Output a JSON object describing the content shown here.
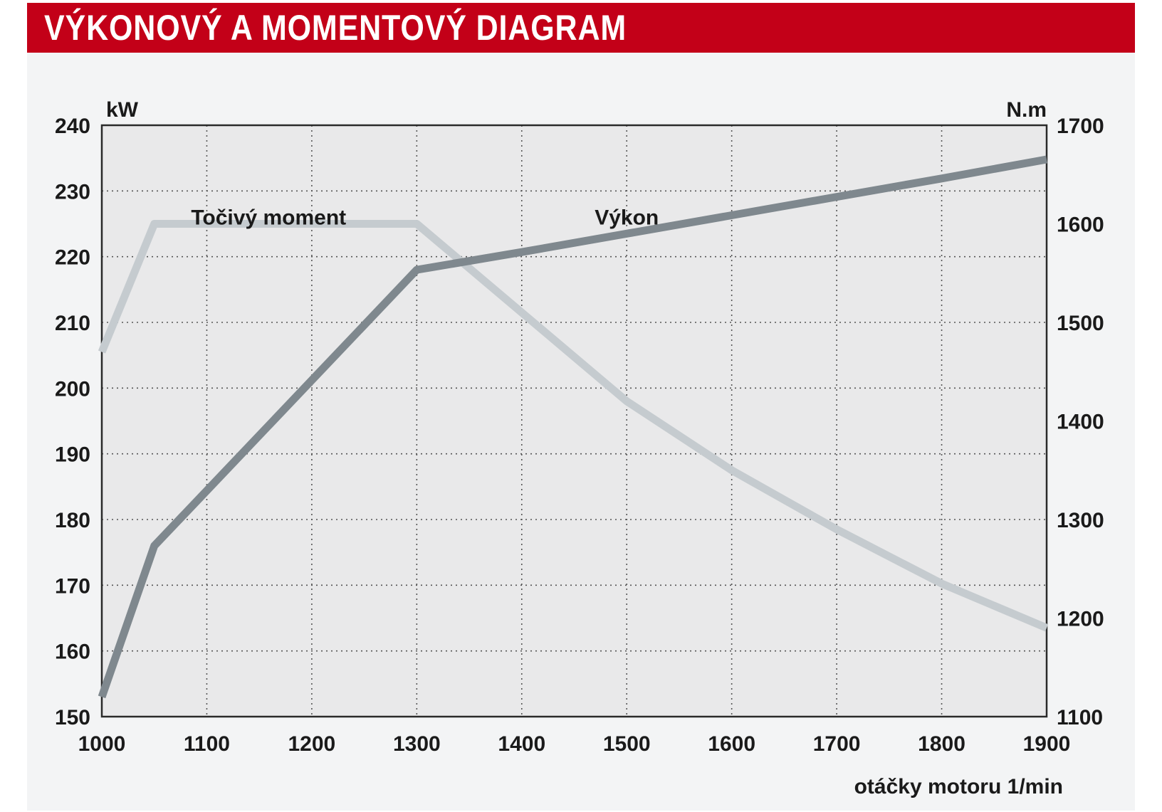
{
  "header": {
    "title": "VÝKONOVÝ A MOMENTOVÝ DIAGRAM"
  },
  "colors": {
    "header_red": "#c30018",
    "power_line": "#7f888e",
    "torque_line": "#c5cbcf",
    "plot_bg": "#e9e9ea"
  },
  "chart_data": {
    "type": "line",
    "title": "VÝKONOVÝ A MOMENTOVÝ DIAGRAM",
    "xlabel": "otáčky motoru 1/min",
    "ylabel_left": "kW",
    "ylabel_right": "N.m",
    "xlim": [
      1000,
      1900
    ],
    "ylim_left": [
      150,
      240
    ],
    "ylim_right": [
      1100,
      1700
    ],
    "x_ticks": [
      1000,
      1100,
      1200,
      1300,
      1400,
      1500,
      1600,
      1700,
      1800,
      1900
    ],
    "y_ticks_left": [
      150,
      160,
      170,
      180,
      190,
      200,
      210,
      220,
      230,
      240
    ],
    "y_ticks_right": [
      1100,
      1200,
      1300,
      1400,
      1500,
      1600,
      1700
    ],
    "grid": true,
    "series": [
      {
        "name": "Výkon",
        "axis": "left",
        "x": [
          1000,
          1050,
          1300,
          1400,
          1500,
          1600,
          1700,
          1800,
          1900
        ],
        "values": [
          153,
          176,
          218,
          220.7,
          223.5,
          226.3,
          229.1,
          231.9,
          234.8
        ]
      },
      {
        "name": "Točivý moment",
        "axis": "right",
        "x": [
          1000,
          1050,
          1100,
          1200,
          1300,
          1400,
          1500,
          1600,
          1700,
          1800,
          1900
        ],
        "values": [
          1470,
          1600,
          1600,
          1600,
          1600,
          1510,
          1420,
          1350,
          1290,
          1235,
          1190
        ]
      }
    ],
    "annotations": [
      {
        "text": "Točivý moment",
        "x": 1085,
        "y_left": 226
      },
      {
        "text": "Výkon",
        "x": 1500,
        "y_left": 226
      }
    ]
  }
}
